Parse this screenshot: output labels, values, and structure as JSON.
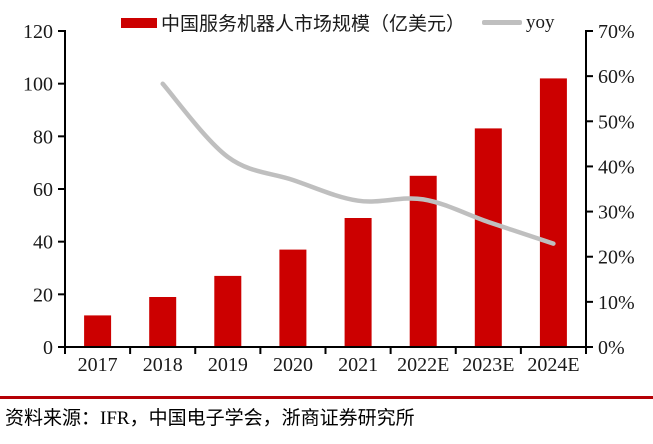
{
  "accent_colors": {
    "bar_red": "#cc0000",
    "line_gray": "#bfbfbf",
    "divider_red": "#b50005",
    "axis_black": "#000000"
  },
  "chart_data": {
    "type": "bar+line",
    "title": "",
    "categories": [
      "2017",
      "2018",
      "2019",
      "2020",
      "2021",
      "2022E",
      "2023E",
      "2024E"
    ],
    "series": [
      {
        "name": "中国服务机器人市场规模（亿美元）",
        "type": "bar",
        "axis": "left",
        "color": "#cc0000",
        "values": [
          12,
          19,
          27,
          37,
          49,
          65,
          83,
          102
        ]
      },
      {
        "name": "yoy",
        "type": "line",
        "axis": "right",
        "color": "#bfbfbf",
        "unit": "%",
        "values": [
          null,
          58.3,
          42.1,
          37.0,
          32.4,
          32.7,
          27.7,
          22.9
        ]
      }
    ],
    "left_axis": {
      "min": 0,
      "max": 120,
      "step": 20,
      "tick_labels": [
        "0",
        "20",
        "40",
        "60",
        "80",
        "100",
        "120"
      ]
    },
    "right_axis": {
      "min": 0,
      "max": 70,
      "step": 10,
      "tick_labels": [
        "0%",
        "10%",
        "20%",
        "30%",
        "40%",
        "50%",
        "60%",
        "70%"
      ]
    },
    "grid": false,
    "legend_position": "top"
  },
  "footer": {
    "source": "资料来源：IFR，中国电子学会，浙商证券研究所"
  }
}
